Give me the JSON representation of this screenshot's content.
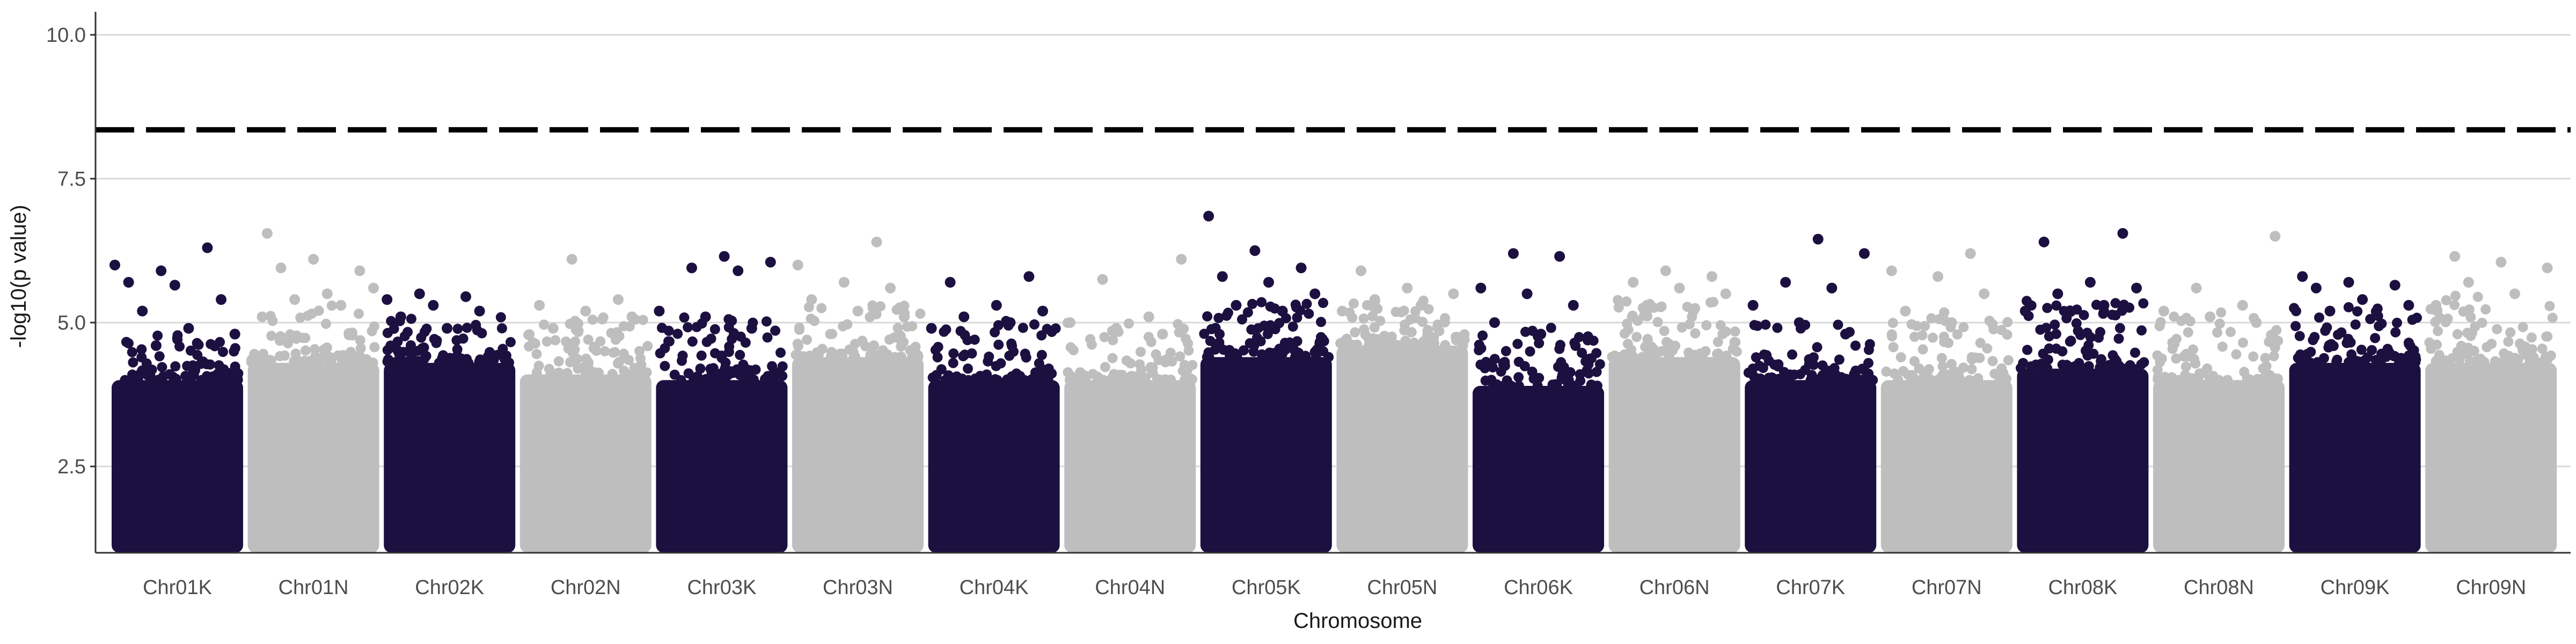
{
  "chart_data": {
    "type": "scatter",
    "subtype": "manhattan",
    "title": "",
    "xlabel": "Chromosome",
    "ylabel": "-log10(p value)",
    "ylim": [
      1,
      10.4
    ],
    "y_ticks": [
      2.5,
      5.0,
      7.5,
      10.0
    ],
    "y_tick_labels": [
      "2.5",
      "5.0",
      "7.5",
      "10.0"
    ],
    "grid": "horizontal-major",
    "legend": "none",
    "threshold": {
      "value": 8.35,
      "style": "dashed",
      "color": "#000000"
    },
    "point_min": 1.0,
    "colors": {
      "dark": "#1c1040",
      "light": "#bebebe",
      "axis": "#333333",
      "grid": "#d9d9d9"
    },
    "categories": [
      "Chr01K",
      "Chr01N",
      "Chr02K",
      "Chr02N",
      "Chr03K",
      "Chr03N",
      "Chr04K",
      "Chr04N",
      "Chr05K",
      "Chr05N",
      "Chr06K",
      "Chr06N",
      "Chr07K",
      "Chr07N",
      "Chr08K",
      "Chr08N",
      "Chr09K",
      "Chr09N"
    ],
    "series": [
      {
        "name": "Chr01K",
        "color": "dark",
        "dense_top": 4.0,
        "top_points": [
          6.0,
          5.9,
          6.3,
          5.7,
          5.65,
          5.4,
          5.2,
          4.9,
          4.8,
          4.6
        ]
      },
      {
        "name": "Chr01N",
        "color": "light",
        "dense_top": 4.3,
        "top_points": [
          6.55,
          6.1,
          5.9,
          5.95,
          5.5,
          5.6,
          5.4,
          5.3,
          5.1
        ]
      },
      {
        "name": "Chr02K",
        "color": "dark",
        "dense_top": 4.3,
        "top_points": [
          5.5,
          5.45,
          5.4,
          5.3,
          5.2,
          5.1,
          4.9
        ]
      },
      {
        "name": "Chr02N",
        "color": "light",
        "dense_top": 4.1,
        "top_points": [
          6.1,
          5.4,
          5.3,
          5.2,
          5.1,
          4.9
        ]
      },
      {
        "name": "Chr03K",
        "color": "dark",
        "dense_top": 4.0,
        "top_points": [
          6.15,
          6.05,
          5.95,
          5.9,
          5.2,
          5.1,
          4.9
        ]
      },
      {
        "name": "Chr03N",
        "color": "light",
        "dense_top": 4.4,
        "top_points": [
          6.4,
          6.0,
          5.7,
          5.6,
          5.4,
          5.2,
          5.1
        ]
      },
      {
        "name": "Chr04K",
        "color": "dark",
        "dense_top": 4.0,
        "top_points": [
          5.8,
          5.7,
          5.3,
          5.2,
          5.1,
          5.0,
          4.9
        ]
      },
      {
        "name": "Chr04N",
        "color": "light",
        "dense_top": 4.0,
        "top_points": [
          6.1,
          5.75,
          5.1,
          5.0,
          4.9,
          4.8
        ]
      },
      {
        "name": "Chr05K",
        "color": "dark",
        "dense_top": 4.4,
        "top_points": [
          6.85,
          6.25,
          5.95,
          5.8,
          5.7,
          5.5,
          5.3,
          5.2
        ]
      },
      {
        "name": "Chr05N",
        "color": "light",
        "dense_top": 4.6,
        "top_points": [
          5.9,
          5.6,
          5.5,
          5.4,
          5.3,
          5.2
        ]
      },
      {
        "name": "Chr06K",
        "color": "dark",
        "dense_top": 3.9,
        "top_points": [
          6.2,
          6.15,
          5.6,
          5.5,
          5.3,
          5.0,
          4.8
        ]
      },
      {
        "name": "Chr06N",
        "color": "light",
        "dense_top": 4.4,
        "top_points": [
          5.9,
          5.8,
          5.7,
          5.6,
          5.5,
          5.3,
          5.2
        ]
      },
      {
        "name": "Chr07K",
        "color": "dark",
        "dense_top": 4.0,
        "top_points": [
          6.45,
          6.2,
          5.7,
          5.6,
          5.3,
          5.0,
          4.8
        ]
      },
      {
        "name": "Chr07N",
        "color": "light",
        "dense_top": 4.0,
        "top_points": [
          6.2,
          5.9,
          5.8,
          5.5,
          5.2,
          5.0
        ]
      },
      {
        "name": "Chr08K",
        "color": "dark",
        "dense_top": 4.2,
        "top_points": [
          6.55,
          6.4,
          5.7,
          5.6,
          5.5,
          5.3,
          5.2
        ]
      },
      {
        "name": "Chr08N",
        "color": "light",
        "dense_top": 4.0,
        "top_points": [
          6.5,
          5.6,
          5.3,
          5.2,
          5.1,
          5.0
        ]
      },
      {
        "name": "Chr09K",
        "color": "dark",
        "dense_top": 4.3,
        "top_points": [
          5.8,
          5.7,
          5.65,
          5.6,
          5.4,
          5.3,
          5.2
        ]
      },
      {
        "name": "Chr09N",
        "color": "light",
        "dense_top": 4.3,
        "top_points": [
          6.15,
          6.05,
          5.95,
          5.7,
          5.5,
          5.3
        ]
      }
    ]
  }
}
